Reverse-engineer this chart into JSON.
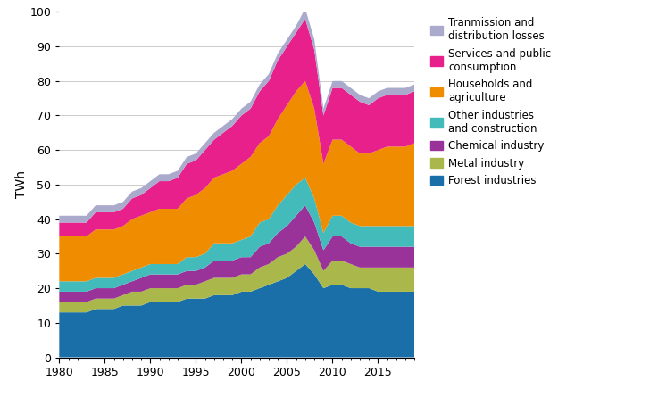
{
  "years": [
    1980,
    1981,
    1982,
    1983,
    1984,
    1985,
    1986,
    1987,
    1988,
    1989,
    1990,
    1991,
    1992,
    1993,
    1994,
    1995,
    1996,
    1997,
    1998,
    1999,
    2000,
    2001,
    2002,
    2003,
    2004,
    2005,
    2006,
    2007,
    2008,
    2009,
    2010,
    2011,
    2012,
    2013,
    2014,
    2015,
    2016,
    2017,
    2018,
    2019
  ],
  "series": {
    "Forest industries": [
      13,
      13,
      13,
      13,
      14,
      14,
      14,
      15,
      15,
      15,
      16,
      16,
      16,
      16,
      17,
      17,
      17,
      18,
      18,
      18,
      19,
      19,
      20,
      21,
      22,
      23,
      25,
      27,
      24,
      20,
      21,
      21,
      20,
      20,
      20,
      19,
      19,
      19,
      19,
      19
    ],
    "Metal industry": [
      3,
      3,
      3,
      3,
      3,
      3,
      3,
      3,
      4,
      4,
      4,
      4,
      4,
      4,
      4,
      4,
      5,
      5,
      5,
      5,
      5,
      5,
      6,
      6,
      7,
      7,
      7,
      8,
      7,
      5,
      7,
      7,
      7,
      6,
      6,
      7,
      7,
      7,
      7,
      7
    ],
    "Chemical industry": [
      3,
      3,
      3,
      3,
      3,
      3,
      3,
      3,
      3,
      4,
      4,
      4,
      4,
      4,
      4,
      4,
      4,
      5,
      5,
      5,
      5,
      5,
      6,
      6,
      7,
      8,
      9,
      9,
      8,
      6,
      7,
      7,
      6,
      6,
      6,
      6,
      6,
      6,
      6,
      6
    ],
    "Other industries and construction": [
      3,
      3,
      3,
      3,
      3,
      3,
      3,
      3,
      3,
      3,
      3,
      3,
      3,
      3,
      4,
      4,
      4,
      5,
      5,
      5,
      5,
      6,
      7,
      7,
      8,
      9,
      9,
      8,
      7,
      5,
      6,
      6,
      6,
      6,
      6,
      6,
      6,
      6,
      6,
      6
    ],
    "Households and agriculture": [
      13,
      13,
      13,
      13,
      14,
      14,
      14,
      14,
      15,
      15,
      15,
      16,
      16,
      16,
      17,
      18,
      19,
      19,
      20,
      21,
      22,
      23,
      23,
      24,
      25,
      26,
      27,
      28,
      26,
      20,
      22,
      22,
      22,
      21,
      21,
      22,
      23,
      23,
      23,
      24
    ],
    "Services and public consumption": [
      4,
      4,
      4,
      4,
      5,
      5,
      5,
      5,
      6,
      6,
      7,
      8,
      8,
      9,
      10,
      10,
      11,
      11,
      12,
      13,
      14,
      14,
      15,
      16,
      17,
      17,
      17,
      18,
      17,
      14,
      15,
      15,
      15,
      15,
      14,
      15,
      15,
      15,
      15,
      15
    ],
    "Tranmission and distribution losses": [
      2,
      2,
      2,
      2,
      2,
      2,
      2,
      2,
      2,
      2,
      2,
      2,
      2,
      2,
      2,
      2,
      2,
      2,
      2,
      2,
      2,
      2,
      2,
      2,
      2,
      2,
      2,
      3,
      3,
      2,
      2,
      2,
      2,
      2,
      2,
      2,
      2,
      2,
      2,
      2
    ]
  },
  "colors": {
    "Forest industries": "#1a6fa8",
    "Metal industry": "#aab84b",
    "Chemical industry": "#993399",
    "Other industries and construction": "#44bbbb",
    "Households and agriculture": "#f08c00",
    "Services and public consumption": "#e8208c",
    "Tranmission and distribution losses": "#aaaacc"
  },
  "ylabel": "TWh",
  "ylim": [
    0,
    100
  ],
  "xlim": [
    1980,
    2019
  ],
  "yticks": [
    0,
    10,
    20,
    30,
    40,
    50,
    60,
    70,
    80,
    90,
    100
  ],
  "xticks": [
    1980,
    1985,
    1990,
    1995,
    2000,
    2005,
    2010,
    2015
  ],
  "legend_labels": [
    "Tranmission and\ndistribution losses",
    "Services and public\nconsumption",
    "Households and\nagriculture",
    "Other industries\nand construction",
    "Chemical industry",
    "Metal industry",
    "Forest industries"
  ]
}
